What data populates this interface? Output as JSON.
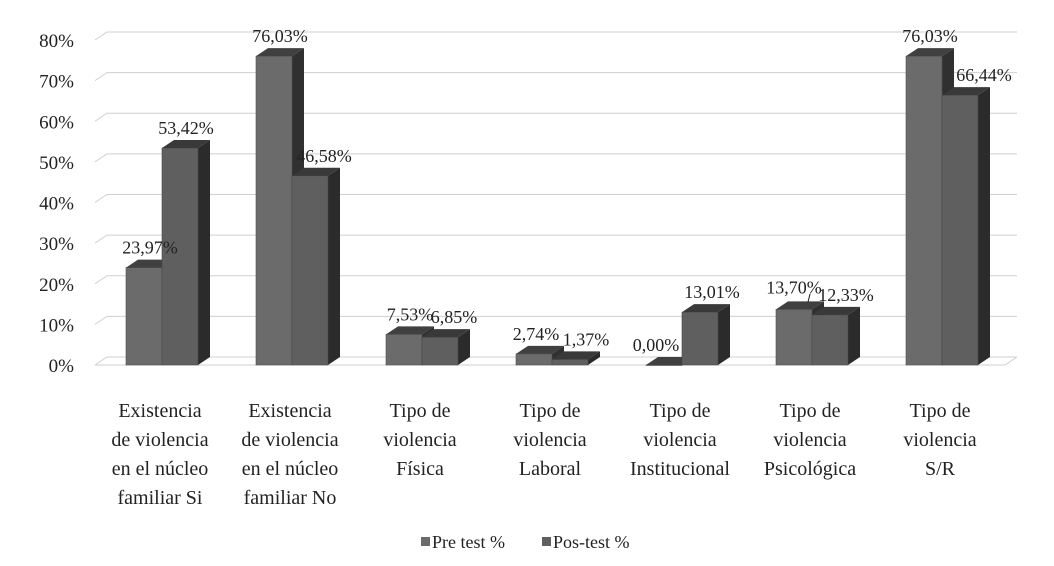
{
  "chart_data": {
    "type": "bar",
    "title": "",
    "xlabel": "",
    "ylabel": "",
    "ylim": [
      0,
      80
    ],
    "yticks": [
      "0%",
      "10%",
      "20%",
      "30%",
      "40%",
      "50%",
      "60%",
      "70%",
      "80%"
    ],
    "grid": true,
    "legend_position": "bottom",
    "categories": [
      [
        "Existencia",
        "de violencia",
        "en el núcleo",
        "familiar Si"
      ],
      [
        "Existencia",
        "de violencia",
        "en el núcleo",
        "familiar No"
      ],
      [
        "Tipo de",
        "violencia",
        "Física"
      ],
      [
        "Tipo de",
        "violencia",
        "Laboral"
      ],
      [
        "Tipo de",
        "violencia",
        "Institucional"
      ],
      [
        "Tipo de",
        "violencia",
        "Psicológica"
      ],
      [
        "Tipo de",
        "violencia",
        "S/R"
      ]
    ],
    "series": [
      {
        "name": "Pre test %",
        "values": [
          23.97,
          76.03,
          7.53,
          2.74,
          0.0,
          13.7,
          76.03
        ],
        "labels": [
          "23,97%",
          "76,03%",
          "7,53%",
          "2,74%",
          "0,00%",
          "13,70%",
          "76,03%"
        ],
        "color": "#6b6b6b"
      },
      {
        "name": "Pos-test %",
        "values": [
          53.42,
          46.58,
          6.85,
          1.37,
          13.01,
          12.33,
          66.44
        ],
        "labels": [
          "53,42%",
          "46,58%",
          "6,85%",
          "1,37%",
          "13,01%",
          "12,33%",
          "66,44%"
        ],
        "color": "#5f5f5f"
      }
    ]
  }
}
